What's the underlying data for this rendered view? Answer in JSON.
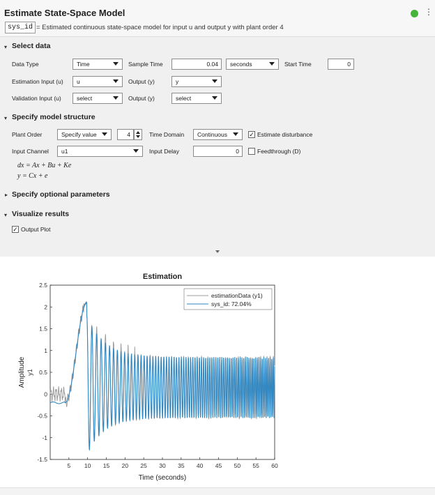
{
  "header": {
    "title": "Estimate State-Space Model",
    "code_tag": "sys_id",
    "description": "=  Estimated continuous state-space model for input u and output y with plant order 4",
    "status_color": "#46b33a",
    "menu_glyph": "⋮"
  },
  "select_data": {
    "section_label": "Select data",
    "data_type_label": "Data Type",
    "data_type_value": "Time",
    "sample_time_label": "Sample Time",
    "sample_time_value": "0.04",
    "sample_time_unit": "seconds",
    "start_time_label": "Start Time",
    "start_time_value": "0",
    "estimation_input_label": "Estimation Input (u)",
    "estimation_input_value": "u",
    "output1_label": "Output (y)",
    "output1_value": "y",
    "validation_input_label": "Validation Input (u)",
    "validation_input_value": "select",
    "output2_label": "Output (y)",
    "output2_value": "select"
  },
  "model_structure": {
    "section_label": "Specify model structure",
    "plant_order_label": "Plant Order",
    "plant_order_mode": "Specify value",
    "plant_order_value": "4",
    "time_domain_label": "Time Domain",
    "time_domain_value": "Continuous",
    "estimate_disturbance_label": "Estimate disturbance",
    "estimate_disturbance_checked": true,
    "input_channel_label": "Input Channel",
    "input_channel_value": "u1",
    "input_delay_label": "Input Delay",
    "input_delay_value": "0",
    "feedthrough_label": "Feedthrough (D)",
    "feedthrough_checked": false,
    "equation_1": "dx = Ax + Bu + Ke",
    "equation_2": "y = Cx + e"
  },
  "optional_params": {
    "section_label": "Specify optional parameters"
  },
  "visualize": {
    "section_label": "Visualize results",
    "output_plot_label": "Output Plot",
    "output_plot_checked": true
  },
  "chart_data": {
    "type": "line",
    "title": "Estimation",
    "xlabel": "Time (seconds)",
    "ylabel": "Amplitude",
    "channel_label": "y1",
    "xlim": [
      0,
      60
    ],
    "ylim": [
      -1.5,
      2.5
    ],
    "x_ticks": [
      5,
      10,
      15,
      20,
      25,
      30,
      35,
      40,
      45,
      50,
      55,
      60
    ],
    "y_ticks": [
      -1.5,
      -1,
      -0.5,
      0,
      0.5,
      1,
      1.5,
      2,
      2.5
    ],
    "legend_position": "top-right",
    "series": [
      {
        "name": "estimationData (y1)",
        "color": "#9a9a9a"
      },
      {
        "name": "sys_id: 72.04%",
        "color": "#2f86c0"
      }
    ]
  }
}
